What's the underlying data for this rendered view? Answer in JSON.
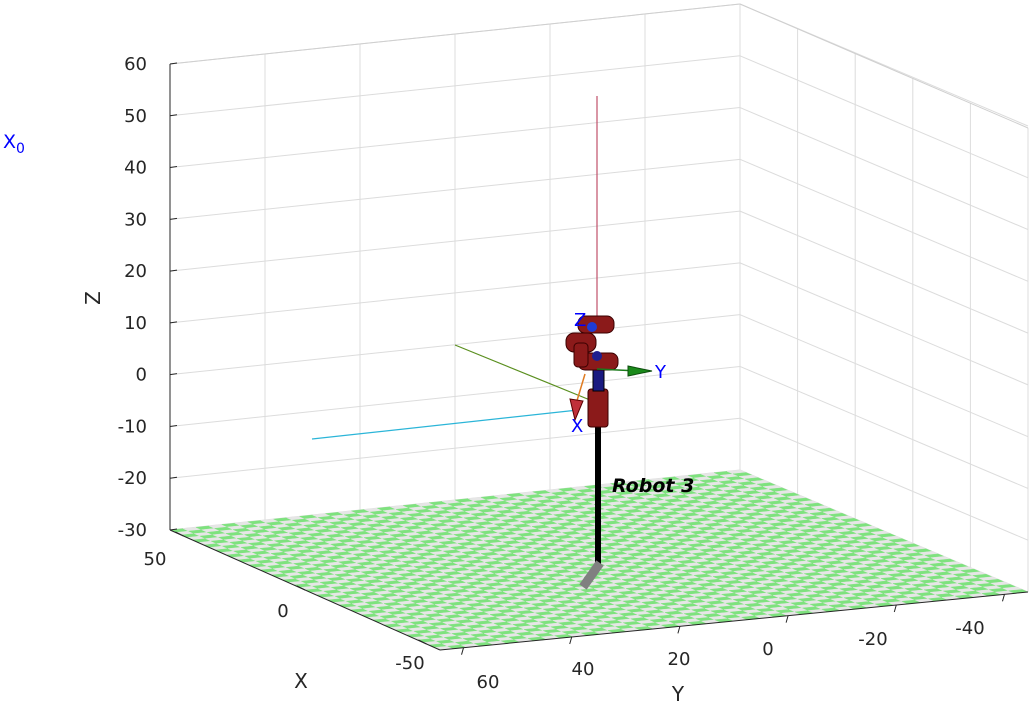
{
  "chart_data": {
    "type": "scatter",
    "title": "",
    "z_ticks": [
      "60",
      "50",
      "40",
      "30",
      "20",
      "10",
      "0",
      "-10",
      "-20",
      "-30"
    ],
    "x_ticks": [
      "50",
      "0",
      "-50"
    ],
    "y_ticks": [
      "60",
      "40",
      "20",
      "0",
      "-20",
      "-40"
    ],
    "xlabel": "X",
    "ylabel": "Y",
    "zlabel": "Z",
    "xlim": [
      -60,
      60
    ],
    "ylim": [
      -50,
      60
    ],
    "zlim": [
      -30,
      60
    ],
    "grid": true,
    "floor": {
      "pattern": "checkerboard",
      "colors": [
        "#7ee27e",
        "#e6e6e6"
      ]
    },
    "annotations": {
      "world_frame_label": "X",
      "world_frame_subscript": "0",
      "robot_name": "Robot 3",
      "tool_frame": {
        "x_label": "X",
        "y_label": "Y",
        "z_label": "Z"
      }
    },
    "colors": {
      "world_frame_label": "#0000ff",
      "tool_frame_labels": "#0000ff",
      "link": "#8b1a1a",
      "joint_axis": "#1a1a80",
      "pole": "#000000",
      "line_cyan": "#2bb5d8",
      "line_green": "#5a8f1f",
      "line_red": "#c0506a"
    }
  }
}
